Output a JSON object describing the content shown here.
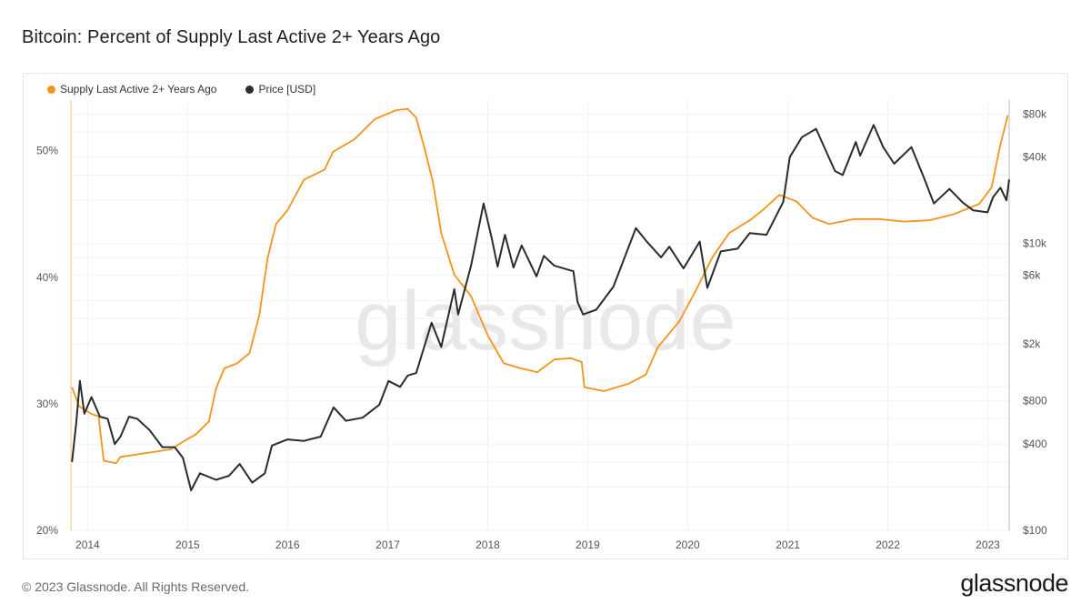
{
  "header": {
    "title": "Bitcoin: Percent of Supply Last Active 2+ Years Ago"
  },
  "legend": [
    {
      "label": "Supply Last Active 2+ Years Ago",
      "color": "#f7931a"
    },
    {
      "label": "Price [USD]",
      "color": "#2b2b2b"
    }
  ],
  "watermark": "glassnode",
  "footer": {
    "copyright": "© 2023 Glassnode. All Rights Reserved.",
    "logo": "glassnode"
  },
  "chart_data": {
    "type": "line",
    "title": "Bitcoin: Percent of Supply Last Active 2+ Years Ago",
    "x_range": [
      "2013-11-01",
      "2023-03-20"
    ],
    "x_ticks": [
      "2014",
      "2015",
      "2016",
      "2017",
      "2018",
      "2019",
      "2020",
      "2021",
      "2022",
      "2023"
    ],
    "y_left": {
      "range": [
        20,
        54
      ],
      "ticks": [
        "20%",
        "30%",
        "40%",
        "50%"
      ],
      "unit": "%"
    },
    "y_right": {
      "scale": "log",
      "range": [
        100,
        100000
      ],
      "ticks": [
        "$100",
        "$400",
        "$800",
        "$2k",
        "$6k",
        "$10k",
        "$40k",
        "$80k"
      ]
    },
    "grid": true,
    "legend_position": "top-left",
    "series": [
      {
        "name": "Supply Last Active 2+ Years Ago",
        "axis": "left",
        "color": "#f7931a",
        "points": [
          [
            "2013-11-05",
            31.3
          ],
          [
            "2013-12-01",
            29.8
          ],
          [
            "2014-01-15",
            29.2
          ],
          [
            "2014-02-10",
            29.0
          ],
          [
            "2014-03-01",
            25.5
          ],
          [
            "2014-04-15",
            25.3
          ],
          [
            "2014-05-01",
            25.8
          ],
          [
            "2014-08-01",
            26.1
          ],
          [
            "2014-11-01",
            26.4
          ],
          [
            "2014-12-15",
            27.0
          ],
          [
            "2015-02-01",
            27.6
          ],
          [
            "2015-03-20",
            28.6
          ],
          [
            "2015-04-15",
            31.2
          ],
          [
            "2015-05-15",
            32.8
          ],
          [
            "2015-07-01",
            33.2
          ],
          [
            "2015-08-15",
            34.0
          ],
          [
            "2015-09-20",
            37.0
          ],
          [
            "2015-10-20",
            41.5
          ],
          [
            "2015-11-20",
            44.2
          ],
          [
            "2016-01-01",
            45.3
          ],
          [
            "2016-03-01",
            47.7
          ],
          [
            "2016-05-15",
            48.5
          ],
          [
            "2016-06-15",
            49.9
          ],
          [
            "2016-09-01",
            50.9
          ],
          [
            "2016-11-15",
            52.5
          ],
          [
            "2017-02-01",
            53.2
          ],
          [
            "2017-03-15",
            53.3
          ],
          [
            "2017-04-15",
            52.6
          ],
          [
            "2017-05-15",
            50.2
          ],
          [
            "2017-06-15",
            47.5
          ],
          [
            "2017-07-15",
            43.5
          ],
          [
            "2017-09-01",
            40.2
          ],
          [
            "2017-11-01",
            38.5
          ],
          [
            "2018-01-01",
            35.4
          ],
          [
            "2018-03-01",
            33.2
          ],
          [
            "2018-05-01",
            32.8
          ],
          [
            "2018-07-01",
            32.5
          ],
          [
            "2018-09-01",
            33.5
          ],
          [
            "2018-11-01",
            33.6
          ],
          [
            "2018-12-10",
            33.3
          ],
          [
            "2018-12-20",
            31.3
          ],
          [
            "2019-03-01",
            31.0
          ],
          [
            "2019-06-01",
            31.6
          ],
          [
            "2019-08-01",
            32.3
          ],
          [
            "2019-09-15",
            34.5
          ],
          [
            "2019-12-01",
            36.5
          ],
          [
            "2020-02-01",
            39.0
          ],
          [
            "2020-04-01",
            41.6
          ],
          [
            "2020-06-01",
            43.5
          ],
          [
            "2020-08-15",
            44.5
          ],
          [
            "2020-10-01",
            45.3
          ],
          [
            "2020-12-01",
            46.5
          ],
          [
            "2021-02-01",
            46.0
          ],
          [
            "2021-04-01",
            44.7
          ],
          [
            "2021-06-01",
            44.2
          ],
          [
            "2021-09-01",
            44.6
          ],
          [
            "2021-12-01",
            44.6
          ],
          [
            "2022-03-01",
            44.4
          ],
          [
            "2022-06-01",
            44.5
          ],
          [
            "2022-09-01",
            45.0
          ],
          [
            "2022-12-01",
            45.8
          ],
          [
            "2023-01-15",
            47.1
          ],
          [
            "2023-02-15",
            50.4
          ],
          [
            "2023-03-15",
            52.8
          ]
        ]
      },
      {
        "name": "Price [USD]",
        "axis": "right",
        "color": "#2b2b2b",
        "points": [
          [
            "2013-11-05",
            300
          ],
          [
            "2013-11-20",
            550
          ],
          [
            "2013-12-04",
            1100
          ],
          [
            "2013-12-20",
            650
          ],
          [
            "2014-01-15",
            850
          ],
          [
            "2014-02-15",
            620
          ],
          [
            "2014-03-15",
            600
          ],
          [
            "2014-04-10",
            400
          ],
          [
            "2014-05-01",
            450
          ],
          [
            "2014-06-01",
            620
          ],
          [
            "2014-07-01",
            600
          ],
          [
            "2014-08-15",
            500
          ],
          [
            "2014-10-01",
            380
          ],
          [
            "2014-11-15",
            380
          ],
          [
            "2014-12-15",
            320
          ],
          [
            "2015-01-14",
            190
          ],
          [
            "2015-02-15",
            250
          ],
          [
            "2015-04-15",
            225
          ],
          [
            "2015-06-01",
            240
          ],
          [
            "2015-07-10",
            290
          ],
          [
            "2015-08-25",
            215
          ],
          [
            "2015-10-10",
            250
          ],
          [
            "2015-11-05",
            390
          ],
          [
            "2016-01-01",
            430
          ],
          [
            "2016-03-01",
            420
          ],
          [
            "2016-05-01",
            450
          ],
          [
            "2016-06-17",
            720
          ],
          [
            "2016-08-01",
            580
          ],
          [
            "2016-10-01",
            610
          ],
          [
            "2016-12-01",
            750
          ],
          [
            "2017-01-04",
            1100
          ],
          [
            "2017-02-15",
            1000
          ],
          [
            "2017-03-15",
            1200
          ],
          [
            "2017-04-15",
            1250
          ],
          [
            "2017-06-10",
            2800
          ],
          [
            "2017-07-15",
            1900
          ],
          [
            "2017-09-01",
            4800
          ],
          [
            "2017-09-15",
            3200
          ],
          [
            "2017-11-01",
            7000
          ],
          [
            "2017-12-17",
            19000
          ],
          [
            "2018-01-15",
            11000
          ],
          [
            "2018-02-06",
            6900
          ],
          [
            "2018-03-05",
            11500
          ],
          [
            "2018-04-05",
            6800
          ],
          [
            "2018-05-05",
            9700
          ],
          [
            "2018-06-28",
            5900
          ],
          [
            "2018-07-25",
            8200
          ],
          [
            "2018-09-01",
            7000
          ],
          [
            "2018-11-10",
            6400
          ],
          [
            "2018-11-25",
            3900
          ],
          [
            "2018-12-15",
            3200
          ],
          [
            "2019-02-01",
            3450
          ],
          [
            "2019-04-05",
            5000
          ],
          [
            "2019-06-26",
            12800
          ],
          [
            "2019-08-01",
            10500
          ],
          [
            "2019-09-26",
            8000
          ],
          [
            "2019-10-26",
            9500
          ],
          [
            "2019-12-17",
            6700
          ],
          [
            "2020-02-14",
            10300
          ],
          [
            "2020-03-13",
            4900
          ],
          [
            "2020-05-01",
            8800
          ],
          [
            "2020-07-01",
            9200
          ],
          [
            "2020-08-15",
            11800
          ],
          [
            "2020-10-15",
            11500
          ],
          [
            "2020-12-15",
            19500
          ],
          [
            "2021-01-08",
            40000
          ],
          [
            "2021-02-21",
            55000
          ],
          [
            "2021-04-14",
            63000
          ],
          [
            "2021-06-22",
            32000
          ],
          [
            "2021-07-20",
            30000
          ],
          [
            "2021-09-06",
            51000
          ],
          [
            "2021-09-22",
            41000
          ],
          [
            "2021-11-10",
            67000
          ],
          [
            "2021-12-15",
            47000
          ],
          [
            "2022-01-24",
            36000
          ],
          [
            "2022-03-28",
            47000
          ],
          [
            "2022-05-12",
            29000
          ],
          [
            "2022-06-18",
            19000
          ],
          [
            "2022-08-14",
            24000
          ],
          [
            "2022-10-01",
            19300
          ],
          [
            "2022-11-09",
            17000
          ],
          [
            "2022-12-31",
            16500
          ],
          [
            "2023-01-20",
            21000
          ],
          [
            "2023-02-16",
            24500
          ],
          [
            "2023-03-10",
            20000
          ],
          [
            "2023-03-20",
            28000
          ]
        ]
      }
    ]
  }
}
